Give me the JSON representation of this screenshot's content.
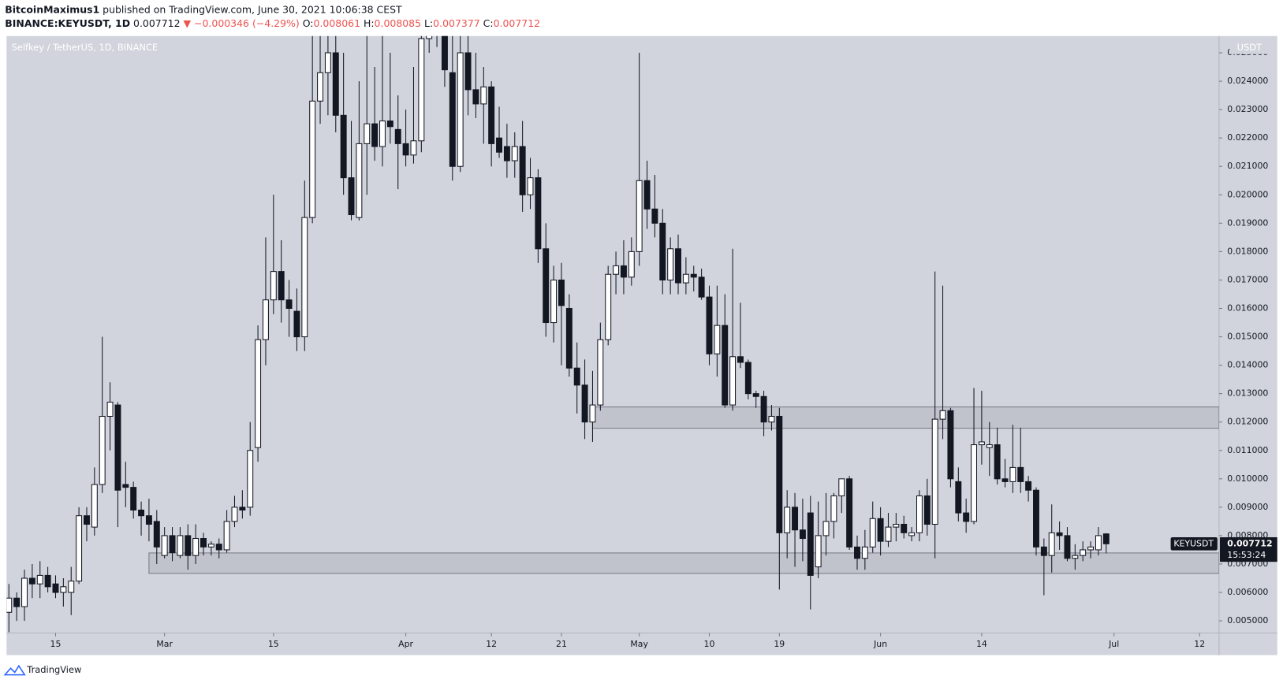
{
  "header": {
    "publisher": "BitcoinMaximus1",
    "published": "published on TradingView.com, June 30, 2021 10:06:38 CEST",
    "symbol": "BINANCE:KEYUSDT, 1D",
    "last": "0.007712",
    "change": "▼ −0.000346 (−4.29%)",
    "ohlc": [
      {
        "key": "O:",
        "value": "0.008061"
      },
      {
        "key": "H:",
        "value": "0.008085"
      },
      {
        "key": "L:",
        "value": "0.007377"
      },
      {
        "key": "C:",
        "value": "0.007712"
      }
    ]
  },
  "footer": {
    "brand": "TradingView"
  },
  "chart_data": {
    "type": "candlestick",
    "title": "Selfkey / TetherUS, 1D, BINANCE",
    "y_axis_label": "USDT",
    "up_color": "#ffffff",
    "down_color": "#131722",
    "background": "#d1d4dc",
    "xlim": [
      -0.3,
      155.5
    ],
    "ylim": [
      0.00457,
      0.02559
    ],
    "xticks": [
      {
        "value": 6,
        "label": "15"
      },
      {
        "value": 20,
        "label": "Mar"
      },
      {
        "value": 34,
        "label": "15"
      },
      {
        "value": 51,
        "label": "Apr"
      },
      {
        "value": 62,
        "label": "12"
      },
      {
        "value": 71,
        "label": "21"
      },
      {
        "value": 81,
        "label": "May"
      },
      {
        "value": 90,
        "label": "10"
      },
      {
        "value": 99,
        "label": "19"
      },
      {
        "value": 112,
        "label": "Jun"
      },
      {
        "value": 125,
        "label": "14"
      },
      {
        "value": 142,
        "label": "Jul"
      },
      {
        "value": 153,
        "label": "12"
      }
    ],
    "yticks": [
      {
        "value": 0.005,
        "label": "0.005000"
      },
      {
        "value": 0.006,
        "label": "0.006000"
      },
      {
        "value": 0.007,
        "label": "0.007000"
      },
      {
        "value": 0.008,
        "label": "0.008000"
      },
      {
        "value": 0.009,
        "label": "0.009000"
      },
      {
        "value": 0.01,
        "label": "0.010000"
      },
      {
        "value": 0.011,
        "label": "0.011000"
      },
      {
        "value": 0.012,
        "label": "0.012000"
      },
      {
        "value": 0.013,
        "label": "0.013000"
      },
      {
        "value": 0.014,
        "label": "0.014000"
      },
      {
        "value": 0.015,
        "label": "0.015000"
      },
      {
        "value": 0.016,
        "label": "0.016000"
      },
      {
        "value": 0.017,
        "label": "0.017000"
      },
      {
        "value": 0.018,
        "label": "0.018000"
      },
      {
        "value": 0.019,
        "label": "0.019000"
      },
      {
        "value": 0.02,
        "label": "0.020000"
      },
      {
        "value": 0.021,
        "label": "0.021000"
      },
      {
        "value": 0.022,
        "label": "0.022000"
      },
      {
        "value": 0.023,
        "label": "0.023000"
      },
      {
        "value": 0.024,
        "label": "0.024000"
      },
      {
        "value": 0.025,
        "label": "0.025000"
      }
    ],
    "zones": [
      {
        "ylim": [
          0.01178,
          0.01253
        ],
        "x_start": 75
      },
      {
        "ylim": [
          0.00667,
          0.00739
        ],
        "x_start": 18
      }
    ],
    "last_price": {
      "name": "KEYUSDT",
      "value": 0.007712,
      "label": "0.007712",
      "countdown": "15:53:24"
    },
    "ohlc": [
      [
        0.0053,
        0.0063,
        0.0046,
        0.0058
      ],
      [
        0.0058,
        0.006,
        0.005,
        0.0055
      ],
      [
        0.0055,
        0.0068,
        0.005,
        0.0065
      ],
      [
        0.0065,
        0.007,
        0.0058,
        0.0063
      ],
      [
        0.0063,
        0.0071,
        0.0058,
        0.0066
      ],
      [
        0.0066,
        0.0069,
        0.006,
        0.0062
      ],
      [
        0.0063,
        0.0066,
        0.0058,
        0.006
      ],
      [
        0.006,
        0.0065,
        0.0055,
        0.0062
      ],
      [
        0.006,
        0.0069,
        0.0052,
        0.0064
      ],
      [
        0.0064,
        0.009,
        0.0063,
        0.0087
      ],
      [
        0.0087,
        0.009,
        0.0078,
        0.0084
      ],
      [
        0.0083,
        0.0104,
        0.008,
        0.0098
      ],
      [
        0.0098,
        0.015,
        0.0095,
        0.0122
      ],
      [
        0.0122,
        0.0134,
        0.011,
        0.0127
      ],
      [
        0.0126,
        0.0127,
        0.0083,
        0.0096
      ],
      [
        0.0098,
        0.0106,
        0.009,
        0.0097
      ],
      [
        0.0097,
        0.0099,
        0.0086,
        0.0089
      ],
      [
        0.0089,
        0.0092,
        0.008,
        0.0087
      ],
      [
        0.0087,
        0.0093,
        0.0078,
        0.0084
      ],
      [
        0.0085,
        0.0089,
        0.007,
        0.0076
      ],
      [
        0.0073,
        0.0083,
        0.0072,
        0.008
      ],
      [
        0.008,
        0.0083,
        0.0071,
        0.0074
      ],
      [
        0.0073,
        0.0083,
        0.0072,
        0.008
      ],
      [
        0.008,
        0.0084,
        0.0068,
        0.0073
      ],
      [
        0.0073,
        0.0084,
        0.007,
        0.0079
      ],
      [
        0.0079,
        0.0081,
        0.0073,
        0.0076
      ],
      [
        0.0076,
        0.0078,
        0.0073,
        0.0077
      ],
      [
        0.0077,
        0.0079,
        0.0072,
        0.0075
      ],
      [
        0.0075,
        0.0089,
        0.0074,
        0.0085
      ],
      [
        0.0085,
        0.0094,
        0.0083,
        0.009
      ],
      [
        0.009,
        0.0096,
        0.0086,
        0.0089
      ],
      [
        0.009,
        0.012,
        0.0087,
        0.011
      ],
      [
        0.0111,
        0.0154,
        0.0106,
        0.0149
      ],
      [
        0.0149,
        0.0185,
        0.014,
        0.0163
      ],
      [
        0.0163,
        0.02,
        0.0158,
        0.0173
      ],
      [
        0.0173,
        0.0184,
        0.0155,
        0.0163
      ],
      [
        0.0163,
        0.017,
        0.015,
        0.016
      ],
      [
        0.0159,
        0.0167,
        0.0145,
        0.015
      ],
      [
        0.015,
        0.0205,
        0.0145,
        0.0192
      ],
      [
        0.0192,
        0.0265,
        0.019,
        0.0233
      ],
      [
        0.0233,
        0.0262,
        0.0225,
        0.0243
      ],
      [
        0.0243,
        0.0262,
        0.0228,
        0.025
      ],
      [
        0.025,
        0.0262,
        0.0222,
        0.0228
      ],
      [
        0.0228,
        0.025,
        0.02,
        0.0206
      ],
      [
        0.0206,
        0.0226,
        0.0191,
        0.0193
      ],
      [
        0.0192,
        0.024,
        0.0191,
        0.0218
      ],
      [
        0.0218,
        0.0262,
        0.02,
        0.0225
      ],
      [
        0.0225,
        0.0245,
        0.0212,
        0.0217
      ],
      [
        0.0217,
        0.0262,
        0.021,
        0.0226
      ],
      [
        0.0226,
        0.025,
        0.0218,
        0.0224
      ],
      [
        0.0223,
        0.0235,
        0.0202,
        0.0218
      ],
      [
        0.0218,
        0.023,
        0.021,
        0.0214
      ],
      [
        0.0214,
        0.0245,
        0.0211,
        0.0219
      ],
      [
        0.0219,
        0.0265,
        0.0215,
        0.0255
      ],
      [
        0.0255,
        0.027,
        0.025,
        0.0262
      ],
      [
        0.0262,
        0.0268,
        0.0252,
        0.0257
      ],
      [
        0.0257,
        0.0262,
        0.0238,
        0.0244
      ],
      [
        0.0243,
        0.0258,
        0.0205,
        0.021
      ],
      [
        0.021,
        0.0262,
        0.0208,
        0.025
      ],
      [
        0.025,
        0.0262,
        0.0228,
        0.0237
      ],
      [
        0.0237,
        0.025,
        0.0227,
        0.0232
      ],
      [
        0.0232,
        0.0245,
        0.0218,
        0.0238
      ],
      [
        0.0238,
        0.024,
        0.021,
        0.0218
      ],
      [
        0.022,
        0.0231,
        0.0213,
        0.0215
      ],
      [
        0.0217,
        0.0225,
        0.0206,
        0.0212
      ],
      [
        0.0212,
        0.0222,
        0.0206,
        0.0217
      ],
      [
        0.0217,
        0.0226,
        0.0194,
        0.02
      ],
      [
        0.02,
        0.0213,
        0.0195,
        0.0206
      ],
      [
        0.0206,
        0.0209,
        0.0176,
        0.0181
      ],
      [
        0.0181,
        0.019,
        0.015,
        0.0155
      ],
      [
        0.0155,
        0.0175,
        0.0148,
        0.017
      ],
      [
        0.017,
        0.0176,
        0.014,
        0.0161
      ],
      [
        0.016,
        0.0165,
        0.0136,
        0.0139
      ],
      [
        0.0139,
        0.0148,
        0.0123,
        0.0133
      ],
      [
        0.0133,
        0.0142,
        0.0114,
        0.012
      ],
      [
        0.012,
        0.0138,
        0.0113,
        0.0126
      ],
      [
        0.0126,
        0.0155,
        0.0124,
        0.0149
      ],
      [
        0.0149,
        0.0175,
        0.0147,
        0.0172
      ],
      [
        0.0172,
        0.018,
        0.0165,
        0.0175
      ],
      [
        0.0175,
        0.0184,
        0.0165,
        0.0171
      ],
      [
        0.0171,
        0.0185,
        0.0168,
        0.018
      ],
      [
        0.018,
        0.025,
        0.0175,
        0.0205
      ],
      [
        0.0205,
        0.0212,
        0.0188,
        0.0195
      ],
      [
        0.0195,
        0.0207,
        0.0185,
        0.019
      ],
      [
        0.019,
        0.0195,
        0.0165,
        0.017
      ],
      [
        0.017,
        0.0185,
        0.0165,
        0.0181
      ],
      [
        0.0181,
        0.0186,
        0.0165,
        0.0169
      ],
      [
        0.0169,
        0.0178,
        0.0165,
        0.0172
      ],
      [
        0.0172,
        0.0175,
        0.0166,
        0.0171
      ],
      [
        0.0171,
        0.0174,
        0.0163,
        0.0164
      ],
      [
        0.0164,
        0.0168,
        0.014,
        0.0144
      ],
      [
        0.0144,
        0.0168,
        0.0136,
        0.0154
      ],
      [
        0.0154,
        0.0165,
        0.0125,
        0.0126
      ],
      [
        0.0126,
        0.0181,
        0.0124,
        0.0143
      ],
      [
        0.0143,
        0.0162,
        0.0139,
        0.0141
      ],
      [
        0.0141,
        0.0142,
        0.0128,
        0.013
      ],
      [
        0.013,
        0.0131,
        0.0125,
        0.0129
      ],
      [
        0.0129,
        0.0131,
        0.0115,
        0.012
      ],
      [
        0.012,
        0.0126,
        0.0117,
        0.0122
      ],
      [
        0.0122,
        0.0125,
        0.0061,
        0.0081
      ],
      [
        0.0081,
        0.0096,
        0.0072,
        0.009
      ],
      [
        0.009,
        0.0095,
        0.0069,
        0.0082
      ],
      [
        0.0082,
        0.0093,
        0.0071,
        0.0079
      ],
      [
        0.0088,
        0.0094,
        0.0054,
        0.0066
      ],
      [
        0.0069,
        0.0092,
        0.0065,
        0.008
      ],
      [
        0.008,
        0.0095,
        0.0073,
        0.0085
      ],
      [
        0.0085,
        0.0095,
        0.0079,
        0.0094
      ],
      [
        0.0094,
        0.01,
        0.0088,
        0.01
      ],
      [
        0.01,
        0.0101,
        0.0075,
        0.0076
      ],
      [
        0.0076,
        0.008,
        0.0068,
        0.0072
      ],
      [
        0.0072,
        0.0082,
        0.0068,
        0.0076
      ],
      [
        0.0076,
        0.0092,
        0.0074,
        0.0086
      ],
      [
        0.0086,
        0.009,
        0.0073,
        0.0078
      ],
      [
        0.0078,
        0.0088,
        0.0076,
        0.0083
      ],
      [
        0.0083,
        0.0088,
        0.0078,
        0.0084
      ],
      [
        0.0084,
        0.0087,
        0.0079,
        0.0081
      ],
      [
        0.008,
        0.0083,
        0.0078,
        0.0081
      ],
      [
        0.0081,
        0.0096,
        0.0078,
        0.0094
      ],
      [
        0.0094,
        0.01,
        0.008,
        0.0084
      ],
      [
        0.0084,
        0.0173,
        0.0072,
        0.0121
      ],
      [
        0.0121,
        0.0168,
        0.0114,
        0.0124
      ],
      [
        0.0124,
        0.0125,
        0.0097,
        0.01
      ],
      [
        0.0099,
        0.0104,
        0.0085,
        0.0088
      ],
      [
        0.0088,
        0.0093,
        0.0081,
        0.0085
      ],
      [
        0.0085,
        0.0132,
        0.0084,
        0.0112
      ],
      [
        0.0112,
        0.0131,
        0.0105,
        0.0113
      ],
      [
        0.0111,
        0.012,
        0.0101,
        0.0112
      ],
      [
        0.0112,
        0.0118,
        0.0098,
        0.01
      ],
      [
        0.01,
        0.0107,
        0.0097,
        0.0099
      ],
      [
        0.0099,
        0.0119,
        0.0095,
        0.0104
      ],
      [
        0.0104,
        0.0118,
        0.0095,
        0.0099
      ],
      [
        0.0099,
        0.0101,
        0.0092,
        0.0096
      ],
      [
        0.0096,
        0.0097,
        0.0073,
        0.0076
      ],
      [
        0.0076,
        0.0079,
        0.0059,
        0.0073
      ],
      [
        0.0073,
        0.0091,
        0.0067,
        0.0081
      ],
      [
        0.0081,
        0.0085,
        0.0075,
        0.008
      ],
      [
        0.008,
        0.0083,
        0.0071,
        0.0072
      ],
      [
        0.0072,
        0.0077,
        0.0068,
        0.0073
      ],
      [
        0.0073,
        0.0078,
        0.0071,
        0.0075
      ],
      [
        0.0075,
        0.0078,
        0.0072,
        0.0076
      ],
      [
        0.0075,
        0.0083,
        0.0073,
        0.008
      ],
      [
        0.008061,
        0.008085,
        0.007377,
        0.007712
      ]
    ]
  }
}
